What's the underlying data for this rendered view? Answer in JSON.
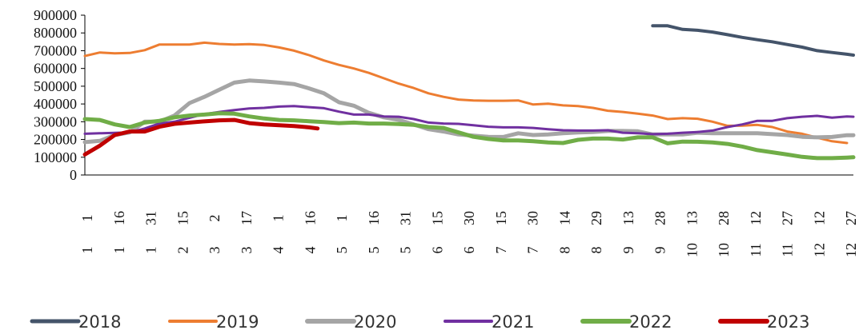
{
  "chart_data": {
    "type": "line",
    "title": "",
    "xlabel": "",
    "ylabel": "",
    "ylim": [
      0,
      900000
    ],
    "y_ticks": [
      "900000",
      "800000",
      "700000",
      "600000",
      "500000",
      "400000",
      "300000",
      "200000",
      "100000",
      "0"
    ],
    "x_ticks": [
      {
        "day": "1",
        "month": "1"
      },
      {
        "day": "16",
        "month": "1"
      },
      {
        "day": "31",
        "month": "1"
      },
      {
        "day": "15",
        "month": "2"
      },
      {
        "day": "2",
        "month": "3"
      },
      {
        "day": "17",
        "month": "3"
      },
      {
        "day": "1",
        "month": "4"
      },
      {
        "day": "16",
        "month": "4"
      },
      {
        "day": "1",
        "month": "5"
      },
      {
        "day": "16",
        "month": "5"
      },
      {
        "day": "31",
        "month": "5"
      },
      {
        "day": "15",
        "month": "6"
      },
      {
        "day": "30",
        "month": "6"
      },
      {
        "day": "15",
        "month": "7"
      },
      {
        "day": "30",
        "month": "7"
      },
      {
        "day": "14",
        "month": "8"
      },
      {
        "day": "29",
        "month": "8"
      },
      {
        "day": "13",
        "month": "9"
      },
      {
        "day": "28",
        "month": "9"
      },
      {
        "day": "13",
        "month": "10"
      },
      {
        "day": "28",
        "month": "10"
      },
      {
        "day": "12",
        "month": "11"
      },
      {
        "day": "27",
        "month": "11"
      },
      {
        "day": "12",
        "month": "12"
      },
      {
        "day": "27",
        "month": "12"
      }
    ],
    "x_domain": [
      1,
      361
    ],
    "legend_position": "bottom",
    "grid": false,
    "series": [
      {
        "name": "2018",
        "color": "#44546A",
        "width": 4,
        "x": [
          267,
          274,
          281,
          288,
          295,
          302,
          309,
          316,
          323,
          330,
          337,
          344,
          351,
          358,
          361
        ],
        "y": [
          840000,
          840000,
          820000,
          815000,
          805000,
          790000,
          775000,
          762000,
          750000,
          735000,
          720000,
          700000,
          690000,
          680000,
          675000
        ]
      },
      {
        "name": "2019",
        "color": "#ED7D31",
        "width": 3,
        "x": [
          1,
          8,
          15,
          22,
          29,
          36,
          43,
          50,
          57,
          64,
          71,
          78,
          85,
          92,
          99,
          106,
          113,
          120,
          127,
          134,
          141,
          148,
          155,
          162,
          169,
          176,
          183,
          190,
          197,
          204,
          211,
          218,
          225,
          232,
          239,
          246,
          253,
          260,
          267,
          274,
          281,
          288,
          295,
          302,
          309,
          316,
          323,
          330,
          337,
          344,
          351,
          358
        ],
        "y": [
          670000,
          690000,
          685000,
          687000,
          703000,
          735000,
          735000,
          735000,
          745000,
          738000,
          735000,
          737000,
          732000,
          718000,
          700000,
          675000,
          645000,
          620000,
          600000,
          575000,
          545000,
          515000,
          490000,
          460000,
          440000,
          425000,
          420000,
          418000,
          418000,
          420000,
          397000,
          402000,
          392000,
          388000,
          378000,
          362000,
          355000,
          345000,
          335000,
          315000,
          320000,
          317000,
          300000,
          277000,
          278000,
          282000,
          270000,
          245000,
          232000,
          210000,
          190000,
          180000
        ]
      },
      {
        "name": "2020",
        "color": "#A5A5A5",
        "width": 5,
        "x": [
          1,
          8,
          15,
          22,
          29,
          36,
          43,
          50,
          57,
          64,
          71,
          78,
          85,
          92,
          99,
          106,
          113,
          120,
          127,
          134,
          141,
          148,
          155,
          162,
          169,
          176,
          183,
          190,
          197,
          204,
          211,
          218,
          225,
          232,
          239,
          246,
          253,
          260,
          267,
          274,
          281,
          288,
          295,
          302,
          309,
          316,
          323,
          330,
          337,
          344,
          351,
          358,
          361
        ],
        "y": [
          185000,
          192000,
          225000,
          240000,
          300000,
          300000,
          335000,
          405000,
          440000,
          480000,
          520000,
          532000,
          527000,
          520000,
          512000,
          488000,
          460000,
          410000,
          390000,
          350000,
          325000,
          310000,
          285000,
          258000,
          245000,
          228000,
          222000,
          215000,
          214000,
          235000,
          225000,
          228000,
          235000,
          240000,
          242000,
          248000,
          248000,
          246000,
          228000,
          228000,
          228000,
          238000,
          235000,
          235000,
          235000,
          235000,
          230000,
          225000,
          215000,
          212000,
          214000,
          224000,
          224000
        ]
      },
      {
        "name": "2021",
        "color": "#7030A0",
        "width": 3,
        "x": [
          1,
          8,
          15,
          22,
          29,
          36,
          43,
          50,
          57,
          64,
          71,
          78,
          85,
          92,
          99,
          106,
          113,
          120,
          127,
          134,
          141,
          148,
          155,
          162,
          169,
          176,
          183,
          190,
          197,
          204,
          211,
          218,
          225,
          232,
          239,
          246,
          253,
          260,
          267,
          274,
          281,
          288,
          295,
          302,
          309,
          316,
          323,
          330,
          337,
          344,
          351,
          358,
          361
        ],
        "y": [
          232000,
          235000,
          237000,
          240000,
          262000,
          290000,
          300000,
          322000,
          343000,
          355000,
          366000,
          375000,
          378000,
          385000,
          388000,
          382000,
          376000,
          357000,
          340000,
          340000,
          330000,
          328000,
          315000,
          295000,
          290000,
          288000,
          280000,
          272000,
          268000,
          268000,
          265000,
          258000,
          252000,
          250000,
          250000,
          252000,
          238000,
          235000,
          230000,
          232000,
          238000,
          242000,
          250000,
          270000,
          285000,
          305000,
          305000,
          320000,
          328000,
          333000,
          323000,
          330000,
          328000
        ]
      },
      {
        "name": "2022",
        "color": "#70AD47",
        "width": 5,
        "x": [
          1,
          8,
          15,
          22,
          29,
          36,
          43,
          50,
          57,
          64,
          71,
          78,
          85,
          92,
          99,
          106,
          113,
          120,
          127,
          134,
          141,
          148,
          155,
          162,
          169,
          176,
          183,
          190,
          197,
          204,
          211,
          218,
          225,
          232,
          239,
          246,
          253,
          260,
          267,
          274,
          281,
          288,
          295,
          302,
          309,
          316,
          323,
          330,
          337,
          344,
          351,
          358,
          361
        ],
        "y": [
          315000,
          310000,
          285000,
          270000,
          295000,
          305000,
          325000,
          335000,
          340000,
          348000,
          345000,
          330000,
          318000,
          310000,
          308000,
          303000,
          298000,
          292000,
          295000,
          290000,
          290000,
          287000,
          282000,
          270000,
          265000,
          240000,
          215000,
          203000,
          195000,
          195000,
          190000,
          183000,
          180000,
          198000,
          205000,
          205000,
          200000,
          212000,
          212000,
          178000,
          188000,
          187000,
          183000,
          175000,
          160000,
          140000,
          128000,
          115000,
          102000,
          95000,
          95000,
          98000,
          100000
        ]
      },
      {
        "name": "2023",
        "color": "#C00000",
        "width": 5,
        "x": [
          1,
          8,
          15,
          22,
          29,
          36,
          43,
          50,
          57,
          64,
          71,
          78,
          85,
          92,
          99,
          106,
          110
        ],
        "y": [
          115000,
          165000,
          225000,
          245000,
          245000,
          272000,
          288000,
          295000,
          302000,
          308000,
          310000,
          292000,
          285000,
          280000,
          276000,
          268000,
          262000
        ]
      }
    ]
  }
}
